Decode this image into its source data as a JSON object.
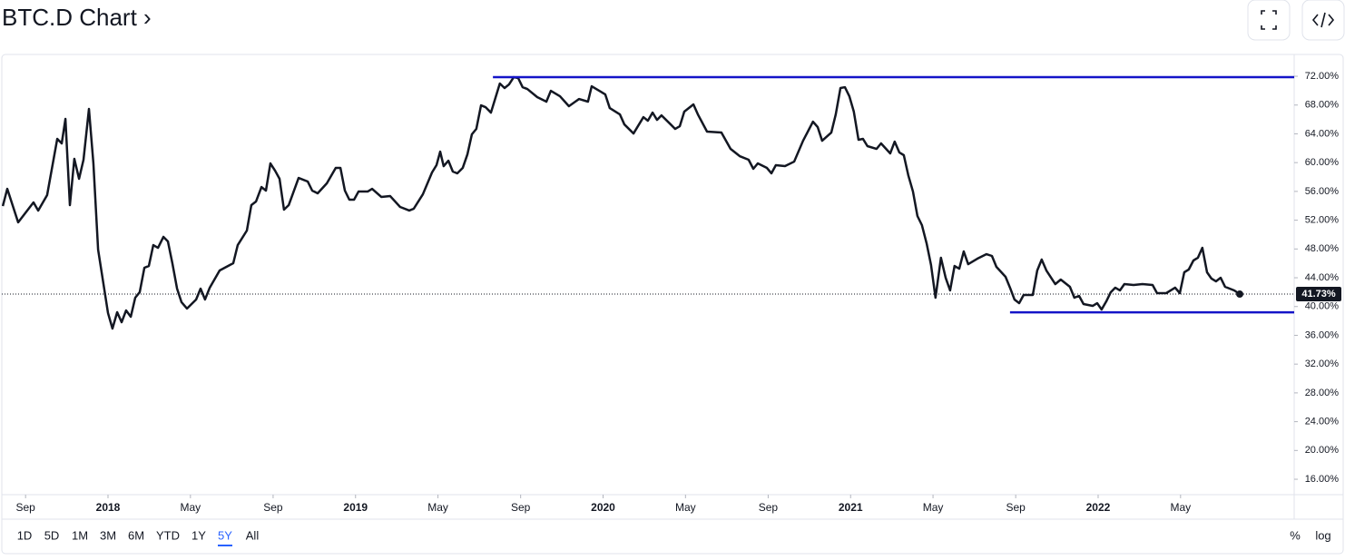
{
  "chart_data": {
    "type": "line",
    "title": "BTC.D Chart ›",
    "x": [
      2017.575,
      2017.593,
      2017.637,
      2017.699,
      2017.718,
      2017.754,
      2017.795,
      2017.813,
      2017.828,
      2017.846,
      2017.864,
      2017.883,
      2017.901,
      2017.923,
      2017.941,
      2017.96,
      2018.0,
      2018.018,
      2018.037,
      2018.055,
      2018.073,
      2018.092,
      2018.11,
      2018.128,
      2018.147,
      2018.165,
      2018.183,
      2018.202,
      2018.224,
      2018.242,
      2018.26,
      2018.279,
      2018.297,
      2018.319,
      2018.356,
      2018.374,
      2018.392,
      2018.411,
      2018.451,
      2018.506,
      2018.524,
      2018.561,
      2018.579,
      2018.598,
      2018.62,
      2018.638,
      2018.656,
      2018.675,
      2018.693,
      2018.711,
      2018.73,
      2018.77,
      2018.807,
      2018.825,
      2018.847,
      2018.884,
      2018.92,
      2018.939,
      2018.957,
      2018.975,
      2018.994,
      2019.012,
      2019.049,
      2019.067,
      2019.104,
      2019.14,
      2019.18,
      2019.217,
      2019.235,
      2019.272,
      2019.309,
      2019.327,
      2019.342,
      2019.356,
      2019.375,
      2019.393,
      2019.411,
      2019.433,
      2019.452,
      2019.47,
      2019.488,
      2019.507,
      2019.525,
      2019.547,
      2019.565,
      2019.583,
      2019.602,
      2019.62,
      2019.639,
      2019.657,
      2019.675,
      2019.694,
      2019.734,
      2019.771,
      2019.789,
      2019.826,
      2019.862,
      2019.903,
      2019.939,
      2019.954,
      2019.991,
      2020.009,
      2020.027,
      2020.068,
      2020.086,
      2020.123,
      2020.163,
      2020.181,
      2020.2,
      2020.218,
      2020.236,
      2020.273,
      2020.291,
      2020.31,
      2020.328,
      2020.365,
      2020.383,
      2020.42,
      2020.478,
      2020.515,
      2020.552,
      2020.588,
      2020.607,
      2020.625,
      2020.662,
      2020.68,
      2020.698,
      2020.735,
      2020.772,
      2020.808,
      2020.848,
      2020.867,
      2020.885,
      2020.922,
      2020.94,
      2020.959,
      2020.977,
      2020.995,
      2021.013,
      2021.032,
      2021.05,
      2021.068,
      2021.105,
      2021.123,
      2021.16,
      2021.178,
      2021.197,
      2021.215,
      2021.233,
      2021.252,
      2021.27,
      2021.288,
      2021.307,
      2021.325,
      2021.343,
      2021.365,
      2021.384,
      2021.402,
      2021.42,
      2021.439,
      2021.457,
      2021.475,
      2021.512,
      2021.549,
      2021.571,
      2021.589,
      2021.626,
      2021.644,
      2021.662,
      2021.681,
      2021.699,
      2021.736,
      2021.754,
      2021.772,
      2021.791,
      2021.827,
      2021.849,
      2021.886,
      2021.904,
      2021.923,
      2021.941,
      2021.978,
      2021.996,
      2022.014,
      2022.033,
      2022.051,
      2022.069,
      2022.088,
      2022.106,
      2022.143,
      2022.179,
      2022.22,
      2022.238,
      2022.275,
      2022.311,
      2022.33,
      2022.348,
      2022.366,
      2022.385,
      2022.403,
      2022.421,
      2022.44,
      2022.458,
      2022.476,
      2022.495,
      2022.513,
      2022.55,
      2022.572
    ],
    "values": [
      53.96,
      56.36,
      51.7,
      54.47,
      53.33,
      55.48,
      63.3,
      62.67,
      66.07,
      54.09,
      60.52,
      57.75,
      60.4,
      67.46,
      59.89,
      47.91,
      39.09,
      36.94,
      39.21,
      37.82,
      39.46,
      38.58,
      41.23,
      41.99,
      45.39,
      45.64,
      48.54,
      48.16,
      49.68,
      49.05,
      46.02,
      42.49,
      40.6,
      39.72,
      40.98,
      42.49,
      40.98,
      42.62,
      45.01,
      46.02,
      48.54,
      50.56,
      54.09,
      54.6,
      56.61,
      56.11,
      59.89,
      58.88,
      57.75,
      53.46,
      54.09,
      57.87,
      57.37,
      56.11,
      55.73,
      57.12,
      59.26,
      59.26,
      56.11,
      54.85,
      54.85,
      55.98,
      55.98,
      56.36,
      55.23,
      55.35,
      53.84,
      53.34,
      53.59,
      55.6,
      58.63,
      59.64,
      61.53,
      59.51,
      60.27,
      58.76,
      58.51,
      59.26,
      61.15,
      63.93,
      64.69,
      67.96,
      67.71,
      66.95,
      68.97,
      70.99,
      70.36,
      70.86,
      71.87,
      71.75,
      70.48,
      70.23,
      69.1,
      68.47,
      69.98,
      69.22,
      67.84,
      68.84,
      68.47,
      70.61,
      69.85,
      69.47,
      67.58,
      66.7,
      65.31,
      64.05,
      66.32,
      65.82,
      66.95,
      65.94,
      66.57,
      65.31,
      64.68,
      65.06,
      67.08,
      68.09,
      66.7,
      64.31,
      64.18,
      61.91,
      60.9,
      60.4,
      59.14,
      59.89,
      59.26,
      58.51,
      59.64,
      59.51,
      60.14,
      63.04,
      65.69,
      64.94,
      63.04,
      64.18,
      66.7,
      70.36,
      70.48,
      69.22,
      67.08,
      63.17,
      63.3,
      62.29,
      61.91,
      62.67,
      61.28,
      62.92,
      61.41,
      61.03,
      58.25,
      55.98,
      52.58,
      51.32,
      48.79,
      45.77,
      41.23,
      46.78,
      44.0,
      42.24,
      45.64,
      45.26,
      47.66,
      45.89,
      46.65,
      47.28,
      47.03,
      45.52,
      44.13,
      42.62,
      40.98,
      40.47,
      41.61,
      41.61,
      45.01,
      46.53,
      45.01,
      43.12,
      43.75,
      42.74,
      41.23,
      41.48,
      40.35,
      40.09,
      40.47,
      39.59,
      40.72,
      41.99,
      42.62,
      42.24,
      43.12,
      43.0,
      43.12,
      43.0,
      41.86,
      41.86,
      42.62,
      41.86,
      44.76,
      45.14,
      46.4,
      46.78,
      48.16,
      44.76,
      43.88,
      43.5,
      44.0,
      42.74,
      42.24,
      41.73
    ],
    "color": "#131722",
    "last_price_label": "41.73%",
    "hlines": [
      {
        "value": 71.87,
        "x": [
          2019.555,
          2022.792
        ],
        "color": "#1414c8"
      },
      {
        "value": 39.2,
        "x": [
          2021.644,
          2022.792
        ],
        "color": "#1414c8"
      }
    ],
    "xlim": [
      2017.571,
      2022.792
    ],
    "xticks": [
      {
        "value": 2017.667,
        "label": "Sep"
      },
      {
        "value": 2018,
        "label": "2018"
      },
      {
        "value": 2018.333,
        "label": "May"
      },
      {
        "value": 2018.667,
        "label": "Sep"
      },
      {
        "value": 2019,
        "label": "2019"
      },
      {
        "value": 2019.333,
        "label": "May"
      },
      {
        "value": 2019.667,
        "label": "Sep"
      },
      {
        "value": 2020,
        "label": "2020"
      },
      {
        "value": 2020.333,
        "label": "May"
      },
      {
        "value": 2020.667,
        "label": "Sep"
      },
      {
        "value": 2021,
        "label": "2021"
      },
      {
        "value": 2021.333,
        "label": "May"
      },
      {
        "value": 2021.667,
        "label": "Sep"
      },
      {
        "value": 2022,
        "label": "2022"
      },
      {
        "value": 2022.333,
        "label": "May"
      }
    ],
    "ylim": [
      13.86,
      75.03
    ],
    "yticks": [
      {
        "value": 16,
        "label": "16.00%"
      },
      {
        "value": 20,
        "label": "20.00%"
      },
      {
        "value": 24,
        "label": "24.00%"
      },
      {
        "value": 28,
        "label": "28.00%"
      },
      {
        "value": 32,
        "label": "32.00%"
      },
      {
        "value": 36,
        "label": "36.00%"
      },
      {
        "value": 40,
        "label": "40.00%"
      },
      {
        "value": 44,
        "label": "44.00%"
      },
      {
        "value": 48,
        "label": "48.00%"
      },
      {
        "value": 52,
        "label": "52.00%"
      },
      {
        "value": 56,
        "label": "56.00%"
      },
      {
        "value": 60,
        "label": "60.00%"
      },
      {
        "value": 64,
        "label": "64.00%"
      },
      {
        "value": 68,
        "label": "68.00%"
      },
      {
        "value": 72,
        "label": "72.00%"
      }
    ],
    "log_scale": false,
    "range_buttons": [
      "1D",
      "5D",
      "1M",
      "3M",
      "6M",
      "YTD",
      "1Y",
      "5Y",
      "All"
    ],
    "selected_range_index": 7,
    "scale_buttons": [
      "%",
      "log"
    ]
  }
}
